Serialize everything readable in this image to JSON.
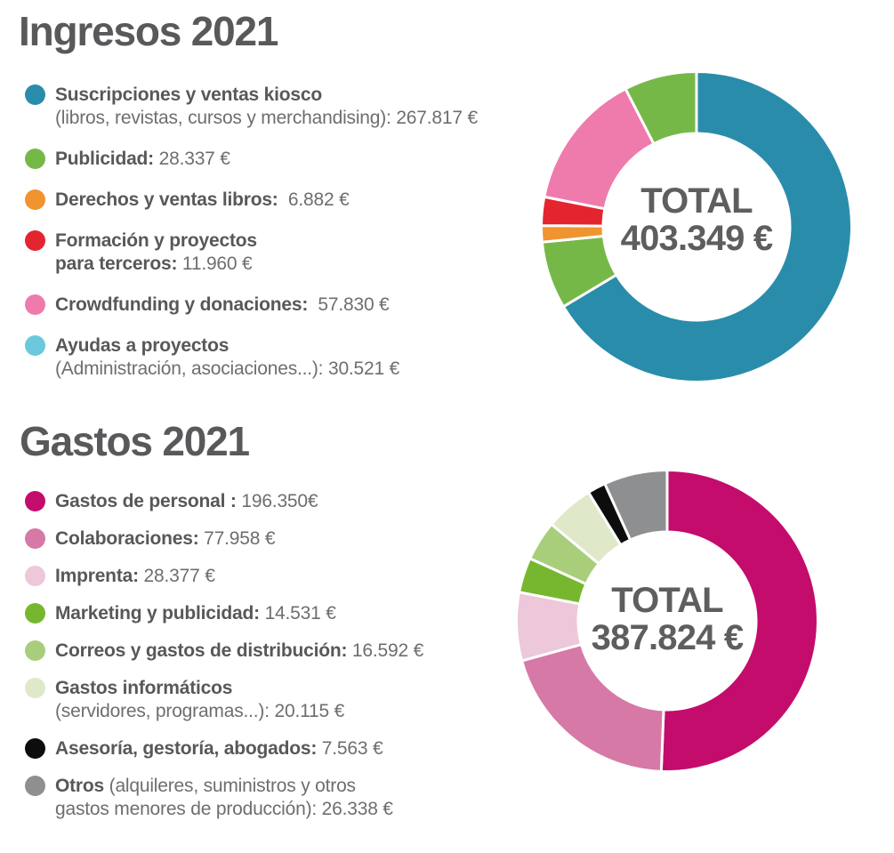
{
  "page": {
    "background": "#ffffff",
    "type": "infographic",
    "language": "es"
  },
  "sections": [
    {
      "id": "ingresos",
      "title": "Ingresos 2021",
      "total_label": "TOTAL",
      "total_value": "403.349 €",
      "legend": [
        {
          "dot_color": "#2a8cab",
          "lines": [
            [
              {
                "t": "Suscripciones y ventas kiosco",
                "b": 1
              }
            ],
            [
              {
                "t": "(libros, revistas, cursos y merchandising): ",
                "b": 0
              },
              {
                "t": "267.817 €",
                "b": 0
              }
            ]
          ]
        },
        {
          "dot_color": "#76b848",
          "lines": [
            [
              {
                "t": "Publicidad:",
                "b": 1
              },
              {
                "t": " 28.337 €",
                "b": 0
              }
            ]
          ]
        },
        {
          "dot_color": "#f0942f",
          "lines": [
            [
              {
                "t": "Derechos y ventas libros:",
                "b": 1
              },
              {
                "t": "  6.882 €",
                "b": 0
              }
            ]
          ]
        },
        {
          "dot_color": "#e4242e",
          "lines": [
            [
              {
                "t": "Formación y proyectos",
                "b": 1
              }
            ],
            [
              {
                "t": "para terceros:",
                "b": 1
              },
              {
                "t": " 11.960 €",
                "b": 0
              }
            ]
          ]
        },
        {
          "dot_color": "#ef7aac",
          "lines": [
            [
              {
                "t": "Crowdfunding y donaciones:",
                "b": 1
              },
              {
                "t": "  57.830 €",
                "b": 0
              }
            ]
          ]
        },
        {
          "dot_color": "#6bc8dd",
          "lines": [
            [
              {
                "t": "Ayudas a proyectos",
                "b": 1
              }
            ],
            [
              {
                "t": "(Administración, asociaciones...): ",
                "b": 0
              },
              {
                "t": "30.521 €",
                "b": 0
              }
            ]
          ]
        }
      ]
    },
    {
      "id": "gastos",
      "title": "Gastos 2021",
      "total_label": "TOTAL",
      "total_value": "387.824 €",
      "legend": [
        {
          "dot_color": "#c30c6c",
          "lines": [
            [
              {
                "t": "Gastos de personal :",
                "b": 1
              },
              {
                "t": " 196.350€",
                "b": 0
              }
            ]
          ]
        },
        {
          "dot_color": "#d679a7",
          "lines": [
            [
              {
                "t": "Colaboraciones:",
                "b": 1
              },
              {
                "t": " 77.958 €",
                "b": 0
              }
            ]
          ]
        },
        {
          "dot_color": "#edc7da",
          "lines": [
            [
              {
                "t": "Imprenta:",
                "b": 1
              },
              {
                "t": " 28.377 €",
                "b": 0
              }
            ]
          ]
        },
        {
          "dot_color": "#76b72f",
          "lines": [
            [
              {
                "t": "Marketing y publicidad:",
                "b": 1
              },
              {
                "t": " 14.531 €",
                "b": 0
              }
            ]
          ]
        },
        {
          "dot_color": "#a8ce7b",
          "lines": [
            [
              {
                "t": "Correos y gastos de distribución:",
                "b": 1
              },
              {
                "t": " 16.592 €",
                "b": 0
              }
            ]
          ]
        },
        {
          "dot_color": "#dfe9c9",
          "lines": [
            [
              {
                "t": "Gastos informáticos",
                "b": 1
              }
            ],
            [
              {
                "t": "(servidores, programas...): ",
                "b": 0
              },
              {
                "t": "20.115 €",
                "b": 0
              }
            ]
          ]
        },
        {
          "dot_color": "#0d0d0d",
          "lines": [
            [
              {
                "t": "Asesoría, gestoría, abogados:",
                "b": 1
              },
              {
                "t": " 7.563 €",
                "b": 0
              }
            ]
          ]
        },
        {
          "dot_color": "#8e8f91",
          "lines": [
            [
              {
                "t": "Otros",
                "b": 1
              },
              {
                "t": " (alquileres, suministros y otros",
                "b": 0
              }
            ],
            [
              {
                "t": "gastos menores de producción): ",
                "b": 0
              },
              {
                "t": "26.338 €",
                "b": 0
              }
            ]
          ]
        }
      ]
    }
  ],
  "chart_data": [
    {
      "type": "pie",
      "variant": "donut",
      "title": "Ingresos 2021",
      "center_label": "TOTAL",
      "center_value": "403.349 €",
      "total_displayed": 403349,
      "currency": "EUR",
      "start_angle_deg": 0,
      "direction": "clockwise",
      "segments": [
        {
          "label": "Suscripciones y ventas kiosco (libros, revistas, cursos y merchandising)",
          "value": 267817,
          "color": "#2a8cab"
        },
        {
          "label": "Publicidad",
          "value": 28337,
          "color": "#76b848"
        },
        {
          "label": "Derechos y ventas libros",
          "value": 6882,
          "color": "#f0942f"
        },
        {
          "label": "Formación y proyectos para terceros",
          "value": 11960,
          "color": "#e4242e"
        },
        {
          "label": "Crowdfunding y donaciones",
          "value": 57830,
          "color": "#ef7aac"
        },
        {
          "label": "Ayudas a proyectos (Administración, asociaciones...)",
          "value": 30521,
          "color": "#76b848",
          "legend_color": "#6bc8dd"
        }
      ]
    },
    {
      "type": "pie",
      "variant": "donut",
      "title": "Gastos 2021",
      "center_label": "TOTAL",
      "center_value": "387.824 €",
      "total_displayed": 387824,
      "currency": "EUR",
      "start_angle_deg": 0,
      "direction": "clockwise",
      "segments": [
        {
          "label": "Gastos de personal",
          "value": 196350,
          "color": "#c30c6c"
        },
        {
          "label": "Colaboraciones",
          "value": 77958,
          "color": "#d679a7"
        },
        {
          "label": "Imprenta",
          "value": 28377,
          "color": "#edc7da"
        },
        {
          "label": "Marketing y publicidad",
          "value": 14531,
          "color": "#76b72f"
        },
        {
          "label": "Correos y gastos de distribución",
          "value": 16592,
          "color": "#a8ce7b"
        },
        {
          "label": "Gastos informáticos (servidores, programas...)",
          "value": 20115,
          "color": "#dfe9c9"
        },
        {
          "label": "Asesoría, gestoría, abogados",
          "value": 7563,
          "color": "#0d0d0d"
        },
        {
          "label": "Otros (alquileres, suministros y otros gastos menores de producción)",
          "value": 26338,
          "color": "#8e8f91"
        }
      ]
    }
  ]
}
